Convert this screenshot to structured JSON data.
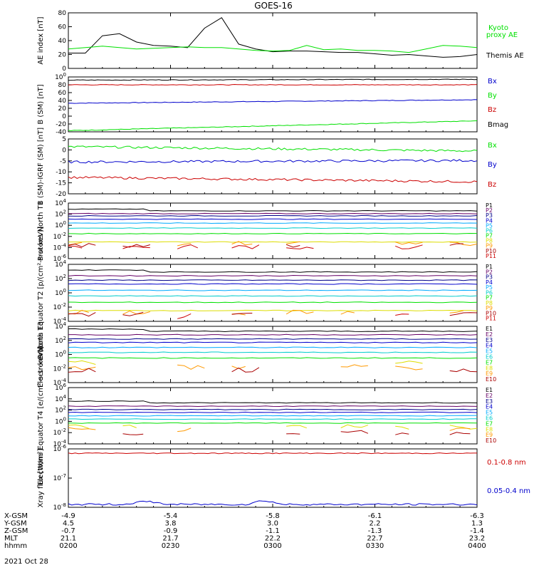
{
  "title": "GOES-16",
  "date_label": "2021 Oct 28",
  "colors": {
    "black": "#000000",
    "green": "#00e000",
    "blue": "#0000cc",
    "red": "#cc0000",
    "cyan": "#00cccc",
    "ltblue": "#00aaff",
    "yellow": "#dddd00",
    "orange": "#ff9900",
    "darkred": "#aa0000",
    "navy": "#000088",
    "purple": "#660066"
  },
  "x_axis": {
    "range": [
      "02:00",
      "04:00"
    ],
    "major_ticks": [
      "02:00",
      "02:30",
      "03:00",
      "03:30",
      "04:00"
    ],
    "orbit_rows": [
      {
        "label": "X-GSM",
        "values": [
          "-4.9",
          "-5.4",
          "-5.8",
          "-6.1",
          "-6.3"
        ]
      },
      {
        "label": "Y-GSM",
        "values": [
          "4.5",
          "3.8",
          "3.0",
          "2.2",
          "1.3"
        ]
      },
      {
        "label": "Z-GSM",
        "values": [
          "-0.7",
          "-0.9",
          "-1.1",
          "-1.3",
          "-1.4"
        ]
      },
      {
        "label": "MLT",
        "values": [
          "21.1",
          "21.7",
          "22.2",
          "22.7",
          "23.2"
        ]
      },
      {
        "label": "hhmm",
        "values": [
          "0200",
          "0230",
          "0300",
          "0330",
          "0400"
        ]
      }
    ]
  },
  "chart_data": [
    {
      "type": "line",
      "ylabel": "AE index [nT]",
      "ylim": [
        0,
        80
      ],
      "yticks": [
        "0",
        "20",
        "40",
        "60",
        "80"
      ],
      "time": [
        "02:00",
        "02:05",
        "02:10",
        "02:15",
        "02:20",
        "02:25",
        "02:30",
        "02:35",
        "02:40",
        "02:45",
        "02:50",
        "02:55",
        "03:00",
        "03:05",
        "03:10",
        "03:15",
        "03:20",
        "03:25",
        "03:30",
        "03:35",
        "03:40",
        "03:45",
        "03:50",
        "03:55",
        "04:00"
      ],
      "series": [
        {
          "name": "Themis AE",
          "color": "black",
          "values": [
            22,
            22,
            47,
            50,
            38,
            33,
            32,
            30,
            58,
            73,
            35,
            28,
            24,
            25,
            25,
            24,
            23,
            23,
            21,
            19,
            20,
            18,
            16,
            17,
            20
          ]
        },
        {
          "name": "Kyoto proxy AE",
          "color": "green",
          "values": [
            28,
            30,
            32,
            30,
            28,
            29,
            30,
            31,
            30,
            30,
            28,
            26,
            25,
            26,
            33,
            27,
            28,
            26,
            26,
            25,
            23,
            28,
            33,
            32,
            30
          ]
        }
      ]
    },
    {
      "type": "line",
      "ylabel": "B (SM) [nT]",
      "ylim": [
        -40,
        100
      ],
      "yticks": [
        "-40",
        "-20",
        "0",
        "20",
        "40",
        "60",
        "80",
        "100"
      ],
      "series": [
        {
          "name": "Bx",
          "color": "blue",
          "start": 33,
          "end": 42
        },
        {
          "name": "By",
          "color": "green",
          "start": -37,
          "end": -12
        },
        {
          "name": "Bz",
          "color": "red",
          "start": 80,
          "end": 80
        },
        {
          "name": "Bmag",
          "color": "black",
          "start": 92,
          "end": 94
        }
      ]
    },
    {
      "type": "line",
      "ylabel": "B (SM)-IGRF (SM) [nT]",
      "ylim": [
        -20,
        5
      ],
      "yticks": [
        "-20",
        "-15",
        "-10",
        "-5",
        "0",
        "5"
      ],
      "series": [
        {
          "name": "Bx",
          "color": "green",
          "start": 1.5,
          "end": -0.5
        },
        {
          "name": "By",
          "color": "blue",
          "start": -5.5,
          "end": -4.8
        },
        {
          "name": "Bz",
          "color": "red",
          "start": -12.5,
          "end": -14.5
        }
      ]
    },
    {
      "type": "line",
      "ylabel": "Protons North T1",
      "ylim": [
        -6,
        4
      ],
      "yticks": [
        "10-6",
        "10-4",
        "10-2",
        "100",
        "102",
        "104"
      ],
      "legend": [
        "P1",
        "P2",
        "P3",
        "P4",
        "P5",
        "P6",
        "P7",
        "P8",
        "P9",
        "P10",
        "P11"
      ],
      "levels_log10": [
        2.6,
        2.1,
        1.7,
        1.1,
        0.4,
        -0.5,
        -1.5,
        -3.0,
        -3.3,
        -3.6,
        -3.9
      ]
    },
    {
      "type": "line",
      "ylabel": "Protons Equator T2 [p/(cm²-s-sr-keV)]",
      "ylim": [
        -5,
        4
      ],
      "yticks": [
        "10-4",
        "10-2",
        "100",
        "102",
        "104"
      ],
      "legend": [
        "P1",
        "P2",
        "P3",
        "P4",
        "P5",
        "P6",
        "P7",
        "P8",
        "P9",
        "P10",
        "P11"
      ],
      "levels_log10": [
        2.8,
        2.2,
        1.5,
        0.9,
        -0.1,
        -1.0,
        -2.0,
        -3.3,
        -3.6,
        -3.9,
        -4.2
      ]
    },
    {
      "type": "line",
      "ylabel": "Electrons North T3",
      "ylim": [
        -4,
        4
      ],
      "yticks": [
        "10-4",
        "10-2",
        "100",
        "102",
        "104"
      ],
      "legend": [
        "E1",
        "E2",
        "E3",
        "E4",
        "E5",
        "E6",
        "E7",
        "E8",
        "E9",
        "E10"
      ],
      "levels_log10": [
        3.3,
        2.8,
        2.2,
        1.7,
        1.0,
        0.3,
        -0.5,
        -1.3,
        -1.8,
        -2.2
      ]
    },
    {
      "type": "line",
      "ylabel": "Electrons Equator T4 [e/(cm²-s-sr-keV)]",
      "ylim": [
        -4,
        6
      ],
      "yticks": [
        "10-4",
        "10-2",
        "100",
        "102",
        "104",
        "106"
      ],
      "legend": [
        "E1",
        "E2",
        "E3",
        "E4",
        "E5",
        "E6",
        "E7",
        "E8",
        "E9",
        "E10"
      ],
      "levels_log10": [
        3.3,
        2.7,
        2.1,
        1.6,
        1.0,
        0.4,
        -0.3,
        -1.0,
        -1.5,
        -2.0
      ]
    },
    {
      "type": "line",
      "ylabel": "Xray flux [W/m²]",
      "ylim": [
        -8,
        -6
      ],
      "yticks": [
        "10-8",
        "10-7",
        "10-6"
      ],
      "series": [
        {
          "name": "0.1-0.8 nm",
          "color": "red",
          "level_log10": -6.15
        },
        {
          "name": "0.05-0.4 nm",
          "color": "blue",
          "level_log10": -7.9
        }
      ]
    }
  ]
}
